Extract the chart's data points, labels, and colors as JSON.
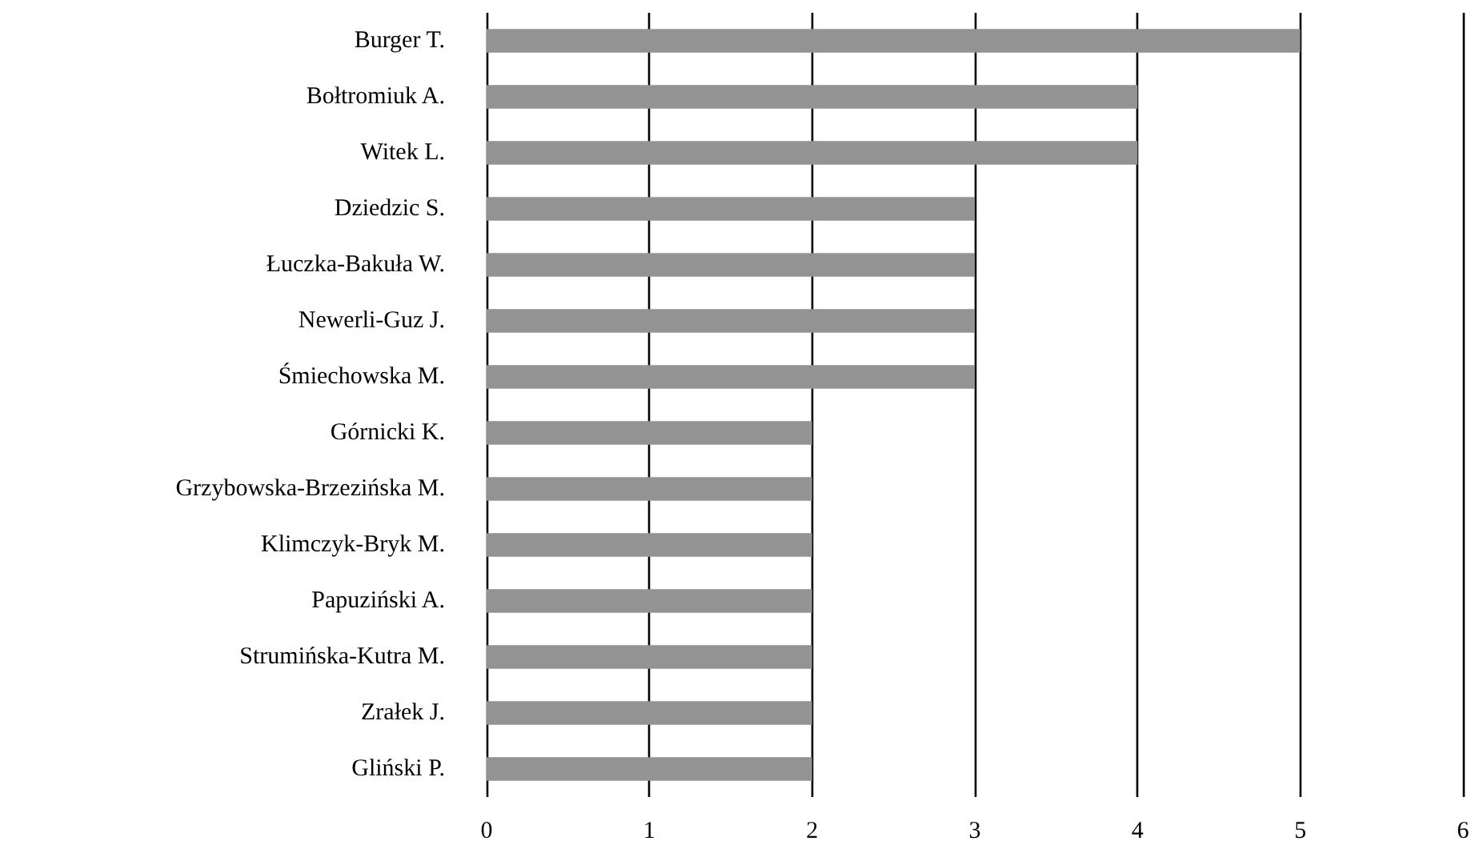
{
  "chart_data": {
    "type": "bar",
    "orientation": "horizontal",
    "categories": [
      "Burger T.",
      "Bołtromiuk A.",
      "Witek L.",
      "Dziedzic S.",
      "Łuczka-Bakuła W.",
      "Newerli-Guz J.",
      "Śmiechowska M.",
      "Górnicki K.",
      "Grzybowska-Brzezińska M.",
      "Klimczyk-Bryk M.",
      "Papuziński A.",
      "Strumińska-Kutra M.",
      "Zrałek J.",
      "Gliński P."
    ],
    "values": [
      5,
      4,
      4,
      3,
      3,
      3,
      3,
      2,
      2,
      2,
      2,
      2,
      2,
      2
    ],
    "color": "#939393",
    "xlim": [
      0,
      6
    ],
    "xticks": [
      0,
      1,
      2,
      3,
      4,
      5,
      6
    ],
    "grid": "x"
  }
}
